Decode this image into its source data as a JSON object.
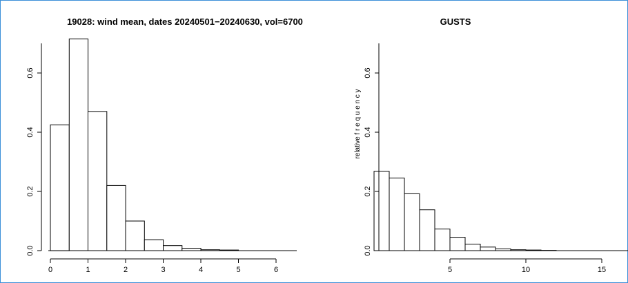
{
  "chart_data": [
    {
      "type": "bar",
      "title": "19028: wind mean, dates 20240501−20240630, vol=6700",
      "xlabel": "",
      "ylabel": "",
      "bins": [
        {
          "x0": 0.0,
          "x1": 0.5,
          "value": 0.425
        },
        {
          "x0": 0.5,
          "x1": 1.0,
          "value": 0.715
        },
        {
          "x0": 1.0,
          "x1": 1.5,
          "value": 0.47
        },
        {
          "x0": 1.5,
          "x1": 2.0,
          "value": 0.22
        },
        {
          "x0": 2.0,
          "x1": 2.5,
          "value": 0.1
        },
        {
          "x0": 2.5,
          "x1": 3.0,
          "value": 0.037
        },
        {
          "x0": 3.0,
          "x1": 3.5,
          "value": 0.017
        },
        {
          "x0": 3.5,
          "x1": 4.0,
          "value": 0.008
        },
        {
          "x0": 4.0,
          "x1": 4.5,
          "value": 0.003
        },
        {
          "x0": 4.5,
          "x1": 5.0,
          "value": 0.002
        }
      ],
      "xlim": [
        0,
        6
      ],
      "ylim": [
        0,
        0.7
      ],
      "xticks": [
        "0",
        "1",
        "2",
        "3",
        "4",
        "5",
        "6"
      ],
      "yticks": [
        "0.0",
        "0.2",
        "0.4",
        "0.6"
      ],
      "grid": false,
      "legend": "none"
    },
    {
      "type": "bar",
      "title": "GUSTS",
      "xlabel": "",
      "ylabel": "relative f r e q u e n c y",
      "bins": [
        {
          "x0": 0,
          "x1": 1,
          "value": 0.268
        },
        {
          "x0": 1,
          "x1": 2,
          "value": 0.245
        },
        {
          "x0": 2,
          "x1": 3,
          "value": 0.192
        },
        {
          "x0": 3,
          "x1": 4,
          "value": 0.138
        },
        {
          "x0": 4,
          "x1": 5,
          "value": 0.073
        },
        {
          "x0": 5,
          "x1": 6,
          "value": 0.045
        },
        {
          "x0": 6,
          "x1": 7,
          "value": 0.022
        },
        {
          "x0": 7,
          "x1": 8,
          "value": 0.012
        },
        {
          "x0": 8,
          "x1": 9,
          "value": 0.006
        },
        {
          "x0": 9,
          "x1": 10,
          "value": 0.003
        },
        {
          "x0": 10,
          "x1": 11,
          "value": 0.002
        },
        {
          "x0": 11,
          "x1": 12,
          "value": 0.001
        }
      ],
      "xlim": [
        0,
        15
      ],
      "ylim": [
        0,
        0.7
      ],
      "xticks": [
        "5",
        "10",
        "15"
      ],
      "yticks": [
        "0.0",
        "0.2",
        "0.4",
        "0.6"
      ],
      "grid": false,
      "legend": "none"
    }
  ]
}
